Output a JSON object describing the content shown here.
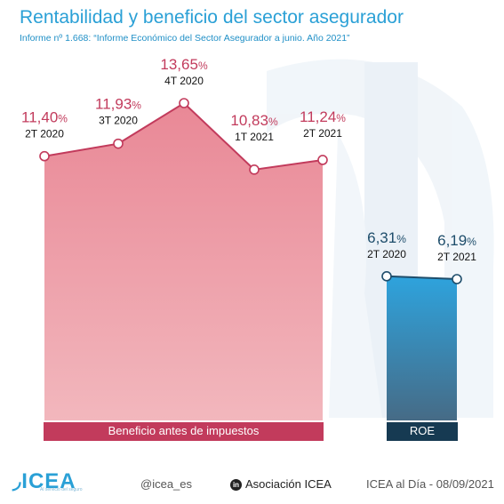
{
  "header": {
    "title": "Rentabilidad y beneficio del sector asegurador",
    "subtitle": "Informe nº 1.668: “Informe Económico del Sector Asegurador a junio. Año 2021”"
  },
  "chart_data": [
    {
      "type": "area",
      "name": "Beneficio antes de impuestos",
      "categories": [
        "2T 2020",
        "3T 2020",
        "4T 2020",
        "1T 2021",
        "2T 2021"
      ],
      "values": [
        11.4,
        11.93,
        13.65,
        10.83,
        11.24
      ],
      "value_labels": [
        "11,40",
        "11,93",
        "13,65",
        "10,83",
        "11,24"
      ],
      "unit": "%",
      "category_label": "Beneficio antes de impuestos",
      "color": "#e7808e",
      "label_color": "#c23b5c"
    },
    {
      "type": "area",
      "name": "ROE",
      "categories": [
        "2T 2020",
        "2T 2021"
      ],
      "values": [
        6.31,
        6.19
      ],
      "value_labels": [
        "6,31",
        "6,19"
      ],
      "unit": "%",
      "category_label": "ROE",
      "color": "#2e9fd8",
      "label_color": "#1e4d6b"
    }
  ],
  "footer": {
    "logo": "ICEA",
    "logo_tagline": "Al servicio del seguro",
    "twitter": "@icea_es",
    "linkedin_icon": "in",
    "linkedin": "Asociación ICEA",
    "date": "ICEA al Día - 08/09/2021"
  },
  "colors": {
    "title": "#2aa0d6",
    "red_area": "#e7808e",
    "red_band": "#c23b5c",
    "blue_area": "#2e9fd8",
    "blue_band": "#163a52"
  }
}
